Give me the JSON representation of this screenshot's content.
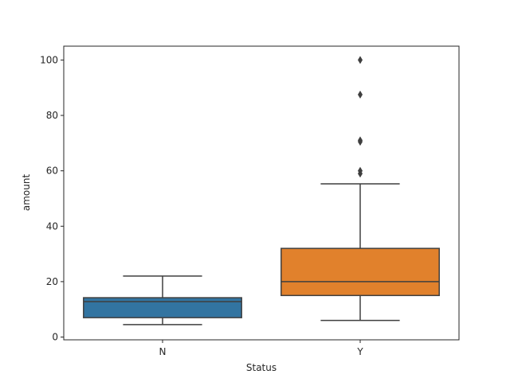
{
  "chart_data": {
    "type": "box",
    "title": "",
    "xlabel": "Status",
    "ylabel": "amount",
    "categories": [
      "N",
      "Y"
    ],
    "ylim": [
      -1,
      105
    ],
    "yticks": [
      0,
      20,
      40,
      60,
      80,
      100
    ],
    "grid": false,
    "boxes": [
      {
        "category": "N",
        "color": "#3274a1",
        "whisker_low": 4.5,
        "q1": 7,
        "median": 12.8,
        "q3": 14.2,
        "whisker_high": 22,
        "outliers": []
      },
      {
        "category": "Y",
        "color": "#e1812c",
        "whisker_low": 6,
        "q1": 15,
        "median": 20,
        "q3": 32,
        "whisker_high": 55.3,
        "outliers": [
          59,
          60,
          70.5,
          71,
          87.5,
          100
        ]
      }
    ]
  }
}
